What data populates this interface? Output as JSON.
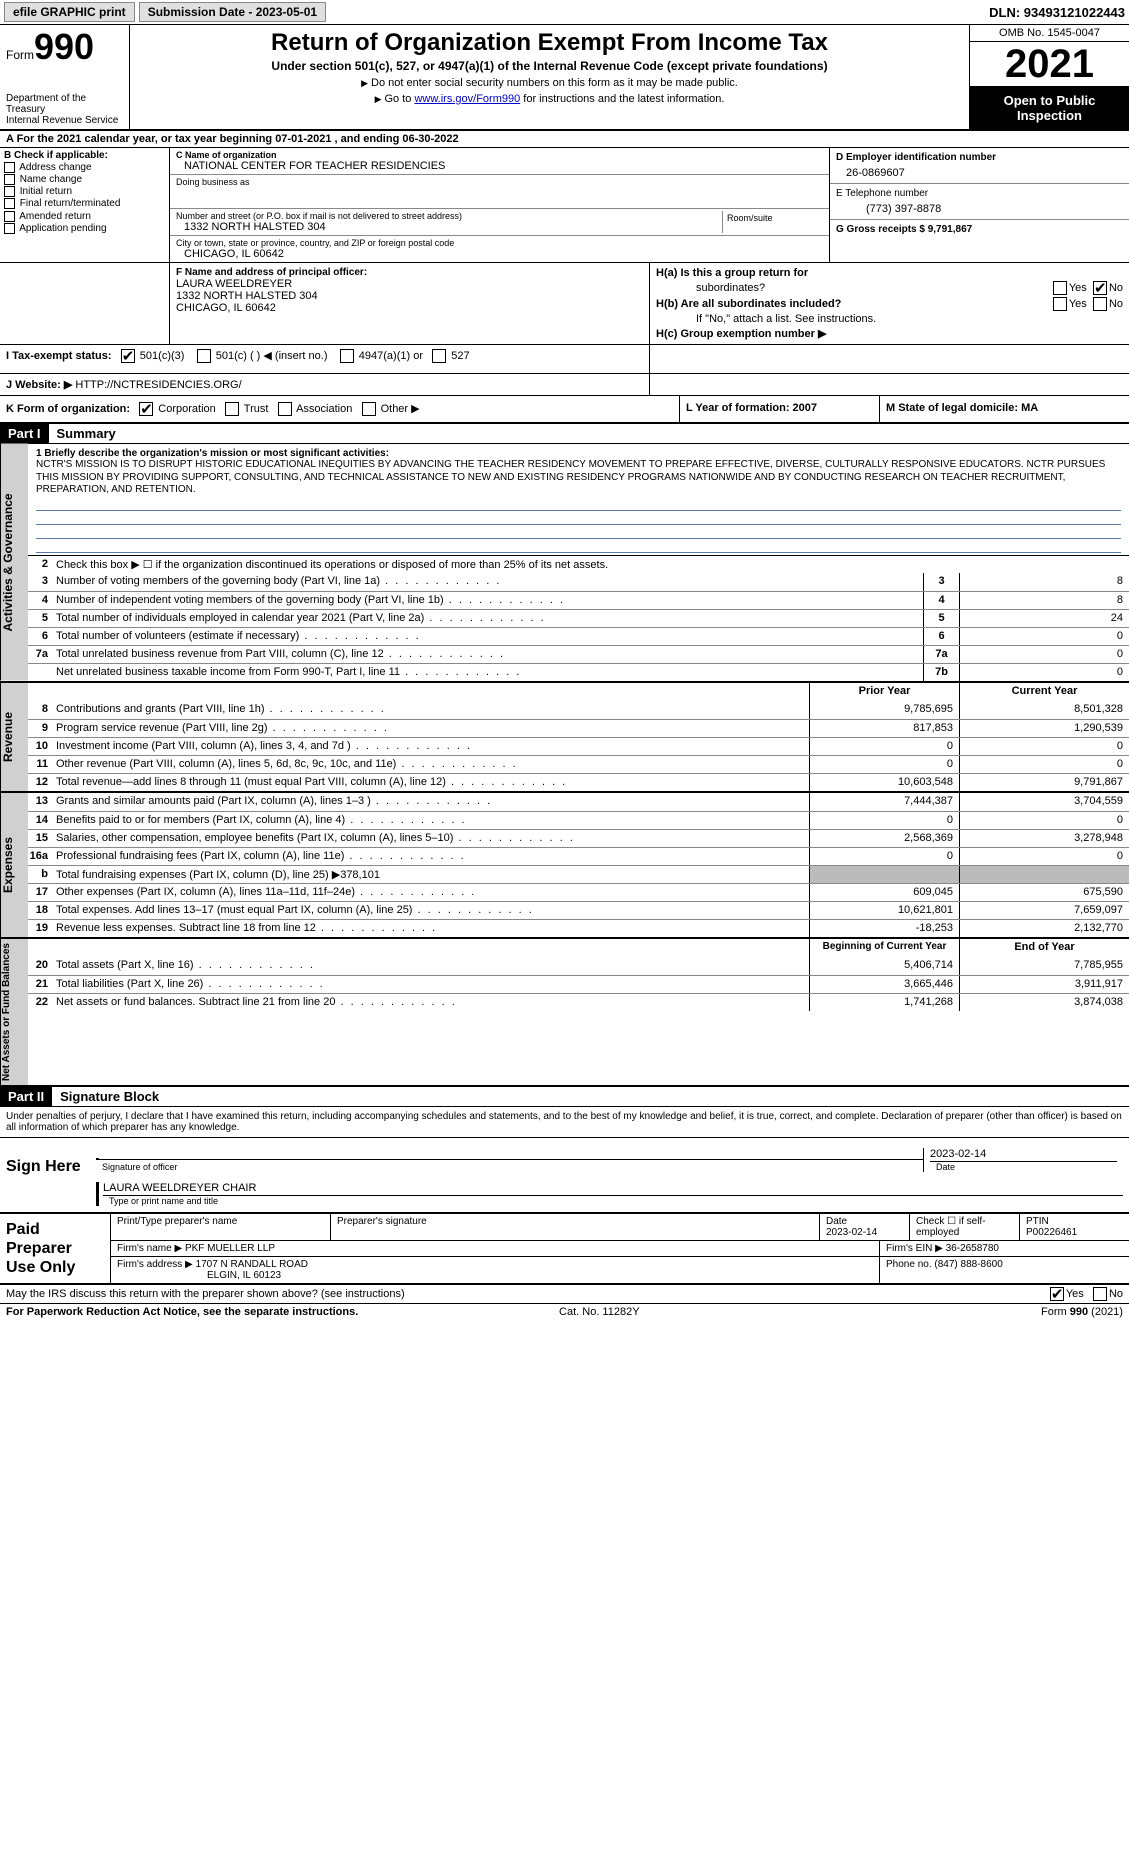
{
  "topbar": {
    "efile": "efile GRAPHIC print",
    "submission": "Submission Date - 2023-05-01",
    "dln": "DLN: 93493121022443"
  },
  "header": {
    "form_label": "Form",
    "form_num": "990",
    "dept": "Department of the Treasury",
    "irs": "Internal Revenue Service",
    "title": "Return of Organization Exempt From Income Tax",
    "subtitle": "Under section 501(c), 527, or 4947(a)(1) of the Internal Revenue Code (except private foundations)",
    "note1": "Do not enter social security numbers on this form as it may be made public.",
    "note2_pre": "Go to ",
    "note2_link": "www.irs.gov/Form990",
    "note2_post": " for instructions and the latest information.",
    "omb": "OMB No. 1545-0047",
    "year": "2021",
    "inspect": "Open to Public Inspection"
  },
  "row_a": "A For the 2021 calendar year, or tax year beginning 07-01-2021     , and ending 06-30-2022",
  "section_b": {
    "lbl": "B Check if applicable:",
    "items": [
      "Address change",
      "Name change",
      "Initial return",
      "Final return/terminated",
      "Amended return",
      "Application pending"
    ]
  },
  "section_c": {
    "name_lbl": "C Name of organization",
    "name_val": "NATIONAL CENTER FOR TEACHER RESIDENCIES",
    "dba_lbl": "Doing business as",
    "dba_val": "",
    "street_lbl": "Number and street (or P.O. box if mail is not delivered to street address)",
    "street_val": "1332 NORTH HALSTED 304",
    "room_lbl": "Room/suite",
    "city_lbl": "City or town, state or province, country, and ZIP or foreign postal code",
    "city_val": "CHICAGO, IL  60642"
  },
  "section_d": {
    "lbl": "D Employer identification number",
    "val": "26-0869607"
  },
  "section_e": {
    "lbl": "E Telephone number",
    "val": "(773) 397-8878"
  },
  "section_g": {
    "lbl": "G Gross receipts $ 9,791,867"
  },
  "section_f": {
    "lbl": "F  Name and address of principal officer:",
    "name": "LAURA WEELDREYER",
    "addr1": "1332 NORTH HALSTED 304",
    "addr2": "CHICAGO, IL  60642"
  },
  "section_h": {
    "ha": "H(a)  Is this a group return for",
    "ha2": "subordinates?",
    "hb": "H(b)  Are all subordinates included?",
    "hb_note": "If \"No,\" attach a list. See instructions.",
    "hc": "H(c)  Group exemption number ▶",
    "yes": "Yes",
    "no": "No"
  },
  "row_i": {
    "lbl": "I    Tax-exempt status:",
    "opts": [
      "501(c)(3)",
      "501(c) (   ) ◀ (insert no.)",
      "4947(a)(1) or",
      "527"
    ]
  },
  "row_j": {
    "lbl": "J   Website: ▶",
    "val": "HTTP://NCTRESIDENCIES.ORG/"
  },
  "row_k": {
    "lbl": "K Form of organization:",
    "opts": [
      "Corporation",
      "Trust",
      "Association",
      "Other ▶"
    ],
    "l": "L Year of formation: 2007",
    "m": "M State of legal domicile: MA"
  },
  "parts": {
    "p1": "Part I",
    "p1t": "Summary",
    "p2": "Part II",
    "p2t": "Signature Block"
  },
  "summary": {
    "q1": "1   Briefly describe the organization's mission or most significant activities:",
    "mission": "NCTR'S MISSION IS TO DISRUPT HISTORIC EDUCATIONAL INEQUITIES BY ADVANCING THE TEACHER RESIDENCY MOVEMENT TO PREPARE EFFECTIVE, DIVERSE, CULTURALLY RESPONSIVE EDUCATORS. NCTR PURSUES THIS MISSION BY PROVIDING SUPPORT, CONSULTING, AND TECHNICAL ASSISTANCE TO NEW AND EXISTING RESIDENCY PROGRAMS NATIONWIDE AND BY CONDUCTING RESEARCH ON TEACHER RECRUITMENT, PREPARATION, AND RETENTION.",
    "q2": "Check this box ▶ ☐  if the organization discontinued its operations or disposed of more than 25% of its net assets.",
    "rows_gov": [
      {
        "n": "3",
        "d": "Number of voting members of the governing body (Part VI, line 1a)",
        "box": "3",
        "v": "8"
      },
      {
        "n": "4",
        "d": "Number of independent voting members of the governing body (Part VI, line 1b)",
        "box": "4",
        "v": "8"
      },
      {
        "n": "5",
        "d": "Total number of individuals employed in calendar year 2021 (Part V, line 2a)",
        "box": "5",
        "v": "24"
      },
      {
        "n": "6",
        "d": "Total number of volunteers (estimate if necessary)",
        "box": "6",
        "v": "0"
      },
      {
        "n": "7a",
        "d": "Total unrelated business revenue from Part VIII, column (C), line 12",
        "box": "7a",
        "v": "0"
      },
      {
        "n": "",
        "d": "Net unrelated business taxable income from Form 990-T, Part I, line 11",
        "box": "7b",
        "v": "0"
      }
    ],
    "hdr_prior": "Prior Year",
    "hdr_curr": "Current Year",
    "rows_rev": [
      {
        "n": "8",
        "d": "Contributions and grants (Part VIII, line 1h)",
        "p": "9,785,695",
        "c": "8,501,328"
      },
      {
        "n": "9",
        "d": "Program service revenue (Part VIII, line 2g)",
        "p": "817,853",
        "c": "1,290,539"
      },
      {
        "n": "10",
        "d": "Investment income (Part VIII, column (A), lines 3, 4, and 7d )",
        "p": "0",
        "c": "0"
      },
      {
        "n": "11",
        "d": "Other revenue (Part VIII, column (A), lines 5, 6d, 8c, 9c, 10c, and 11e)",
        "p": "0",
        "c": "0"
      },
      {
        "n": "12",
        "d": "Total revenue—add lines 8 through 11 (must equal Part VIII, column (A), line 12)",
        "p": "10,603,548",
        "c": "9,791,867"
      }
    ],
    "rows_exp": [
      {
        "n": "13",
        "d": "Grants and similar amounts paid (Part IX, column (A), lines 1–3 )",
        "p": "7,444,387",
        "c": "3,704,559"
      },
      {
        "n": "14",
        "d": "Benefits paid to or for members (Part IX, column (A), line 4)",
        "p": "0",
        "c": "0"
      },
      {
        "n": "15",
        "d": "Salaries, other compensation, employee benefits (Part IX, column (A), lines 5–10)",
        "p": "2,568,369",
        "c": "3,278,948"
      },
      {
        "n": "16a",
        "d": "Professional fundraising fees (Part IX, column (A), line 11e)",
        "p": "0",
        "c": "0"
      },
      {
        "n": "b",
        "d": "Total fundraising expenses (Part IX, column (D), line 25) ▶378,101",
        "p": "",
        "c": "",
        "shade": true
      },
      {
        "n": "17",
        "d": "Other expenses (Part IX, column (A), lines 11a–11d, 11f–24e)",
        "p": "609,045",
        "c": "675,590"
      },
      {
        "n": "18",
        "d": "Total expenses. Add lines 13–17 (must equal Part IX, column (A), line 25)",
        "p": "10,621,801",
        "c": "7,659,097"
      },
      {
        "n": "19",
        "d": "Revenue less expenses. Subtract line 18 from line 12",
        "p": "-18,253",
        "c": "2,132,770"
      }
    ],
    "hdr_beg": "Beginning of Current Year",
    "hdr_end": "End of Year",
    "rows_net": [
      {
        "n": "20",
        "d": "Total assets (Part X, line 16)",
        "p": "5,406,714",
        "c": "7,785,955"
      },
      {
        "n": "21",
        "d": "Total liabilities (Part X, line 26)",
        "p": "3,665,446",
        "c": "3,911,917"
      },
      {
        "n": "22",
        "d": "Net assets or fund balances. Subtract line 21 from line 20",
        "p": "1,741,268",
        "c": "3,874,038"
      }
    ],
    "side_gov": "Activities & Governance",
    "side_rev": "Revenue",
    "side_exp": "Expenses",
    "side_net": "Net Assets or Fund Balances"
  },
  "sig": {
    "intro": "Under penalties of perjury, I declare that I have examined this return, including accompanying schedules and statements, and to the best of my knowledge and belief, it is true, correct, and complete. Declaration of preparer (other than officer) is based on all information of which preparer has any knowledge.",
    "sign_here": "Sign Here",
    "sig_officer": "Signature of officer",
    "date": "Date",
    "date_val": "2023-02-14",
    "name_title": "LAURA WEELDREYER  CHAIR",
    "type_name": "Type or print name and title"
  },
  "prep": {
    "title": "Paid Preparer Use Only",
    "h1": "Print/Type preparer's name",
    "h2": "Preparer's signature",
    "h3": "Date",
    "h3v": "2023-02-14",
    "h4": "Check ☐ if self-employed",
    "h5": "PTIN",
    "h5v": "P00226461",
    "firm_name_lbl": "Firm's name    ▶",
    "firm_name": "PKF MUELLER LLP",
    "firm_ein_lbl": "Firm's EIN ▶",
    "firm_ein": "36-2658780",
    "firm_addr_lbl": "Firm's address ▶",
    "firm_addr1": "1707 N RANDALL ROAD",
    "firm_addr2": "ELGIN, IL  60123",
    "phone_lbl": "Phone no.",
    "phone": "(847) 888-8600"
  },
  "discuss": {
    "q": "May the IRS discuss this return with the preparer shown above? (see instructions)",
    "yes": "Yes",
    "no": "No"
  },
  "footer": {
    "left": "For Paperwork Reduction Act Notice, see the separate instructions.",
    "mid": "Cat. No. 11282Y",
    "right_pre": "Form ",
    "right_b": "990",
    "right_post": " (2021)"
  }
}
